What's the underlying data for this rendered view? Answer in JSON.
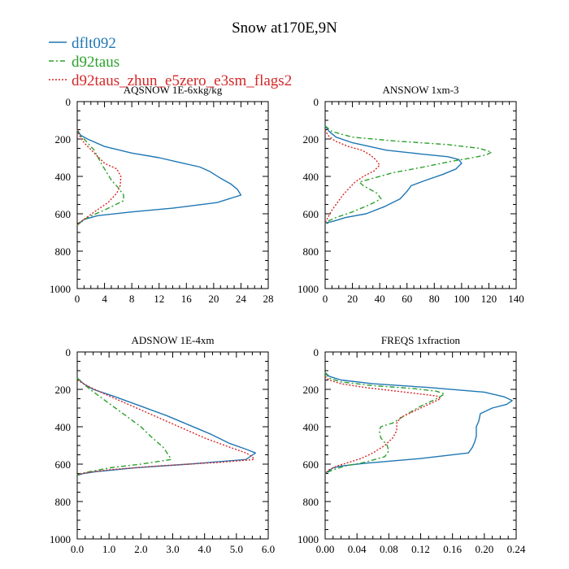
{
  "figure_title": "Snow at170E,9N",
  "legend": [
    {
      "name": "dflt092",
      "color": "#1f77b4",
      "dash": "solid"
    },
    {
      "name": "d92taus",
      "color": "#2ca02c",
      "dash": "dashdot"
    },
    {
      "name": "d92taus_zhun_e5zero_e3sm_flags2",
      "color": "#d62728",
      "dash": "dotted"
    }
  ],
  "chart_data": [
    {
      "type": "line",
      "title": "AQSNOW  1E-6xkg/kg",
      "xlim": [
        0,
        28
      ],
      "xticks": [
        "0",
        "4",
        "8",
        "12",
        "16",
        "20",
        "24",
        "28"
      ],
      "xtick_values": [
        0,
        4,
        8,
        12,
        16,
        20,
        24,
        28
      ],
      "ylim": [
        1000,
        0
      ],
      "yticks": [
        "0",
        "200",
        "400",
        "600",
        "800",
        "1000"
      ],
      "ytick_values": [
        0,
        200,
        400,
        600,
        800,
        1000
      ],
      "series": [
        {
          "name": "dflt092",
          "points": [
            [
              0,
              150
            ],
            [
              0.5,
              180
            ],
            [
              1.5,
              200
            ],
            [
              4,
              240
            ],
            [
              8,
              275
            ],
            [
              12,
              300
            ],
            [
              15,
              325
            ],
            [
              18,
              350
            ],
            [
              19.5,
              375
            ],
            [
              21,
              410
            ],
            [
              22.5,
              440
            ],
            [
              23.5,
              470
            ],
            [
              24,
              500
            ],
            [
              20.5,
              540
            ],
            [
              14,
              570
            ],
            [
              8,
              590
            ],
            [
              3,
              610
            ],
            [
              1,
              630
            ],
            [
              0.3,
              650
            ],
            [
              0,
              660
            ]
          ]
        },
        {
          "name": "d92taus",
          "points": [
            [
              0,
              150
            ],
            [
              0.3,
              180
            ],
            [
              1,
              200
            ],
            [
              2.5,
              260
            ],
            [
              3.5,
              330
            ],
            [
              4.5,
              390
            ],
            [
              5,
              420
            ],
            [
              6,
              460
            ],
            [
              6.8,
              500
            ],
            [
              6.8,
              530
            ],
            [
              4,
              580
            ],
            [
              1.5,
              620
            ],
            [
              0.4,
              650
            ],
            [
              0,
              660
            ]
          ]
        },
        {
          "name": "d92taus_zhun_e5zero_e3sm_flags2",
          "points": [
            [
              0,
              150
            ],
            [
              0.3,
              180
            ],
            [
              1,
              220
            ],
            [
              2.5,
              275
            ],
            [
              4,
              330
            ],
            [
              5.8,
              360
            ],
            [
              6.4,
              400
            ],
            [
              6.3,
              450
            ],
            [
              5.8,
              490
            ],
            [
              4.5,
              540
            ],
            [
              2.5,
              590
            ],
            [
              1,
              630
            ],
            [
              0.2,
              650
            ],
            [
              0,
              660
            ]
          ]
        }
      ]
    },
    {
      "type": "line",
      "title": "ANSNOW  1xm-3",
      "xlim": [
        0,
        140
      ],
      "xticks": [
        "0",
        "20",
        "40",
        "60",
        "80",
        "100",
        "120",
        "140"
      ],
      "xtick_values": [
        0,
        20,
        40,
        60,
        80,
        100,
        120,
        140
      ],
      "ylim": [
        1000,
        0
      ],
      "yticks": [
        "0",
        "200",
        "400",
        "600",
        "800",
        "1000"
      ],
      "ytick_values": [
        0,
        200,
        400,
        600,
        800,
        1000
      ],
      "series": [
        {
          "name": "dflt092",
          "points": [
            [
              0,
              130
            ],
            [
              3,
              160
            ],
            [
              8,
              190
            ],
            [
              20,
              220
            ],
            [
              45,
              260
            ],
            [
              70,
              280
            ],
            [
              90,
              295
            ],
            [
              98,
              310
            ],
            [
              100,
              330
            ],
            [
              96,
              360
            ],
            [
              86,
              390
            ],
            [
              74,
              420
            ],
            [
              63,
              450
            ],
            [
              60,
              480
            ],
            [
              55,
              520
            ],
            [
              44,
              560
            ],
            [
              30,
              600
            ],
            [
              15,
              620
            ],
            [
              6,
              640
            ],
            [
              0,
              650
            ]
          ]
        },
        {
          "name": "d92taus",
          "points": [
            [
              0,
              130
            ],
            [
              5,
              160
            ],
            [
              20,
              190
            ],
            [
              50,
              210
            ],
            [
              90,
              230
            ],
            [
              113,
              250
            ],
            [
              122,
              270
            ],
            [
              118,
              285
            ],
            [
              108,
              300
            ],
            [
              92,
              320
            ],
            [
              72,
              350
            ],
            [
              50,
              380
            ],
            [
              35,
              410
            ],
            [
              25,
              430
            ],
            [
              28,
              450
            ],
            [
              33,
              470
            ],
            [
              38,
              490
            ],
            [
              41,
              520
            ],
            [
              33,
              550
            ],
            [
              20,
              590
            ],
            [
              8,
              620
            ],
            [
              2,
              640
            ],
            [
              0,
              650
            ]
          ]
        },
        {
          "name": "d92taus_zhun_e5zero_e3sm_flags2",
          "points": [
            [
              0,
              150
            ],
            [
              2,
              180
            ],
            [
              7,
              210
            ],
            [
              17,
              240
            ],
            [
              27,
              260
            ],
            [
              33,
              285
            ],
            [
              37,
              310
            ],
            [
              40,
              340
            ],
            [
              36,
              370
            ],
            [
              28,
              400
            ],
            [
              22,
              430
            ],
            [
              18,
              460
            ],
            [
              13,
              500
            ],
            [
              9,
              540
            ],
            [
              5,
              580
            ],
            [
              2,
              620
            ],
            [
              0,
              650
            ]
          ]
        }
      ]
    },
    {
      "type": "line",
      "title": "ADSNOW  1E-4xm",
      "xlim": [
        0,
        6
      ],
      "xticks": [
        "0.0",
        "1.0",
        "2.0",
        "3.0",
        "4.0",
        "5.0",
        "6.0"
      ],
      "xtick_values": [
        0,
        1,
        2,
        3,
        4,
        5,
        6
      ],
      "ylim": [
        1000,
        0
      ],
      "yticks": [
        "0",
        "200",
        "400",
        "600",
        "800",
        "1000"
      ],
      "ytick_values": [
        0,
        200,
        400,
        600,
        800,
        1000
      ],
      "series": [
        {
          "name": "dflt092",
          "points": [
            [
              0,
              140
            ],
            [
              0.2,
              170
            ],
            [
              0.5,
              200
            ],
            [
              1.2,
              240
            ],
            [
              2.0,
              290
            ],
            [
              2.8,
              340
            ],
            [
              3.5,
              390
            ],
            [
              4.2,
              440
            ],
            [
              4.8,
              490
            ],
            [
              5.3,
              520
            ],
            [
              5.6,
              540
            ],
            [
              5.3,
              575
            ],
            [
              3.5,
              600
            ],
            [
              1.8,
              620
            ],
            [
              0.6,
              640
            ],
            [
              0.2,
              650
            ],
            [
              0,
              660
            ]
          ]
        },
        {
          "name": "d92taus",
          "points": [
            [
              0,
              140
            ],
            [
              0.2,
              170
            ],
            [
              0.4,
              200
            ],
            [
              0.8,
              250
            ],
            [
              1.2,
              300
            ],
            [
              1.6,
              350
            ],
            [
              2.0,
              400
            ],
            [
              2.3,
              450
            ],
            [
              2.7,
              510
            ],
            [
              2.9,
              560
            ],
            [
              2.95,
              575
            ],
            [
              2.0,
              600
            ],
            [
              1.0,
              620
            ],
            [
              0.4,
              640
            ],
            [
              0.1,
              650
            ],
            [
              0,
              660
            ]
          ]
        },
        {
          "name": "d92taus_zhun_e5zero_e3sm_flags2",
          "points": [
            [
              0,
              150
            ],
            [
              0.3,
              180
            ],
            [
              0.8,
              220
            ],
            [
              1.6,
              280
            ],
            [
              2.4,
              340
            ],
            [
              3.2,
              400
            ],
            [
              4.0,
              460
            ],
            [
              4.8,
              510
            ],
            [
              5.3,
              540
            ],
            [
              5.5,
              560
            ],
            [
              5.55,
              575
            ],
            [
              4.5,
              590
            ],
            [
              2.5,
              610
            ],
            [
              1.0,
              630
            ],
            [
              0.3,
              645
            ],
            [
              0,
              655
            ]
          ]
        }
      ]
    },
    {
      "type": "line",
      "title": "FREQS  1xfraction",
      "xlim": [
        0,
        0.24
      ],
      "xticks": [
        "0.00",
        "0.04",
        "0.08",
        "0.12",
        "0.16",
        "0.20",
        "0.24"
      ],
      "xtick_values": [
        0,
        0.04,
        0.08,
        0.12,
        0.16,
        0.2,
        0.24
      ],
      "ylim": [
        1000,
        0
      ],
      "yticks": [
        "0",
        "200",
        "400",
        "600",
        "800",
        "1000"
      ],
      "ytick_values": [
        0,
        200,
        400,
        600,
        800,
        1000
      ],
      "series": [
        {
          "name": "dflt092",
          "points": [
            [
              0,
              110
            ],
            [
              0.005,
              130
            ],
            [
              0.02,
              150
            ],
            [
              0.06,
              170
            ],
            [
              0.13,
              190
            ],
            [
              0.2,
              215
            ],
            [
              0.225,
              240
            ],
            [
              0.235,
              260
            ],
            [
              0.228,
              280
            ],
            [
              0.21,
              300
            ],
            [
              0.195,
              330
            ],
            [
              0.193,
              370
            ],
            [
              0.19,
              400
            ],
            [
              0.19,
              450
            ],
            [
              0.188,
              480
            ],
            [
              0.185,
              510
            ],
            [
              0.18,
              540
            ],
            [
              0.12,
              570
            ],
            [
              0.05,
              595
            ],
            [
              0.02,
              610
            ],
            [
              0.01,
              620
            ],
            [
              0.003,
              640
            ],
            [
              0,
              650
            ]
          ]
        },
        {
          "name": "d92taus",
          "points": [
            [
              0,
              110
            ],
            [
              0.005,
              140
            ],
            [
              0.02,
              160
            ],
            [
              0.06,
              180
            ],
            [
              0.11,
              195
            ],
            [
              0.14,
              210
            ],
            [
              0.15,
              225
            ],
            [
              0.14,
              250
            ],
            [
              0.12,
              290
            ],
            [
              0.1,
              340
            ],
            [
              0.085,
              380
            ],
            [
              0.07,
              400
            ],
            [
              0.068,
              420
            ],
            [
              0.07,
              460
            ],
            [
              0.078,
              500
            ],
            [
              0.08,
              530
            ],
            [
              0.075,
              560
            ],
            [
              0.05,
              590
            ],
            [
              0.025,
              610
            ],
            [
              0.01,
              630
            ],
            [
              0,
              650
            ]
          ]
        },
        {
          "name": "d92taus_zhun_e5zero_e3sm_flags2",
          "points": [
            [
              0,
              130
            ],
            [
              0.005,
              150
            ],
            [
              0.02,
              170
            ],
            [
              0.05,
              190
            ],
            [
              0.1,
              215
            ],
            [
              0.14,
              235
            ],
            [
              0.145,
              250
            ],
            [
              0.13,
              280
            ],
            [
              0.11,
              320
            ],
            [
              0.095,
              350
            ],
            [
              0.09,
              380
            ],
            [
              0.09,
              420
            ],
            [
              0.085,
              460
            ],
            [
              0.075,
              500
            ],
            [
              0.06,
              540
            ],
            [
              0.045,
              570
            ],
            [
              0.03,
              590
            ],
            [
              0.015,
              610
            ],
            [
              0.005,
              630
            ],
            [
              0,
              650
            ]
          ]
        }
      ]
    }
  ]
}
